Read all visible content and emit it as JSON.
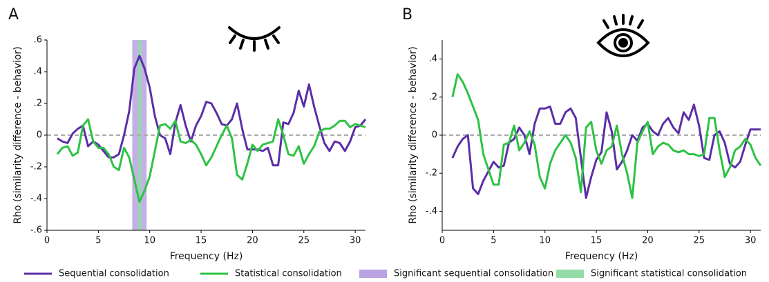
{
  "chart_data": [
    {
      "type": "line",
      "panel": "A",
      "xlabel": "Frequency (Hz)",
      "ylabel": "Rho (similarity difference - behavior)",
      "xlim": [
        0,
        31
      ],
      "ylim": [
        -0.6,
        0.6
      ],
      "xticks": [
        0,
        5,
        10,
        15,
        20,
        25,
        30
      ],
      "yticks": [
        {
          "value": -0.6,
          "label": "-.6"
        },
        {
          "value": -0.4,
          "label": "-.4"
        },
        {
          "value": -0.2,
          "label": "-.2"
        },
        0,
        {
          "value": 0.2,
          "label": ".2"
        },
        {
          "value": 0.4,
          "label": ".4"
        },
        {
          "value": 0.6,
          "label": ".6"
        }
      ],
      "zero_line": true,
      "x": [
        1,
        1.5,
        2,
        2.5,
        3,
        3.5,
        4,
        4.5,
        5,
        5.5,
        6,
        6.5,
        7,
        7.5,
        8,
        8.5,
        9,
        9.5,
        10,
        10.5,
        11,
        11.5,
        12,
        12.5,
        13,
        13.5,
        14,
        14.5,
        15,
        15.5,
        16,
        16.5,
        17,
        17.5,
        18,
        18.5,
        19,
        19.5,
        20,
        20.5,
        21,
        21.5,
        22,
        22.5,
        23,
        23.5,
        24,
        24.5,
        25,
        25.5,
        26,
        26.5,
        27,
        27.5,
        28,
        28.5,
        29,
        29.5,
        30,
        30.5,
        31
      ],
      "bands": [
        {
          "name": "Significant sequential consolidation",
          "color": "#b9a3e0",
          "x": [
            8.3,
            9.7
          ]
        },
        {
          "name": "Significant statistical consolidation",
          "color": "#93dca8",
          "x": [
            8.85,
            9.2
          ]
        }
      ],
      "series": [
        {
          "name": "Sequential consolidation",
          "color": "#5b2ea6",
          "values": [
            -0.02,
            -0.04,
            -0.05,
            0.01,
            0.04,
            0.06,
            -0.07,
            -0.04,
            -0.06,
            -0.1,
            -0.14,
            -0.14,
            -0.12,
            0.0,
            0.15,
            0.42,
            0.5,
            0.42,
            0.3,
            0.12,
            0.0,
            -0.02,
            -0.12,
            0.08,
            0.19,
            0.06,
            -0.04,
            0.06,
            0.12,
            0.21,
            0.2,
            0.14,
            0.07,
            0.06,
            0.1,
            0.2,
            0.04,
            -0.09,
            -0.09,
            -0.09,
            -0.1,
            -0.08,
            -0.19,
            -0.19,
            0.08,
            0.07,
            0.14,
            0.28,
            0.18,
            0.32,
            0.18,
            0.06,
            -0.05,
            -0.1,
            -0.04,
            -0.05,
            -0.1,
            -0.04,
            0.05,
            0.06,
            0.1
          ]
        },
        {
          "name": "Statistical consolidation",
          "color": "#2ec244",
          "values": [
            -0.12,
            -0.08,
            -0.07,
            -0.13,
            -0.11,
            0.06,
            0.1,
            -0.04,
            -0.08,
            -0.08,
            -0.12,
            -0.2,
            -0.22,
            -0.08,
            -0.14,
            -0.28,
            -0.42,
            -0.35,
            -0.26,
            -0.1,
            0.06,
            0.07,
            0.04,
            0.09,
            -0.04,
            -0.05,
            -0.03,
            -0.06,
            -0.12,
            -0.19,
            -0.14,
            -0.07,
            0.0,
            0.06,
            -0.02,
            -0.25,
            -0.28,
            -0.18,
            -0.06,
            -0.1,
            -0.06,
            -0.05,
            -0.04,
            0.1,
            0.0,
            -0.12,
            -0.13,
            -0.07,
            -0.18,
            -0.12,
            -0.07,
            0.02,
            0.04,
            0.04,
            0.06,
            0.09,
            0.09,
            0.05,
            0.07,
            0.06,
            0.05
          ]
        }
      ]
    },
    {
      "type": "line",
      "panel": "B",
      "xlabel": "Frequency (Hz)",
      "ylabel": "Rho (similarity difference - behavior)",
      "xlim": [
        0,
        31
      ],
      "ylim": [
        -0.5,
        0.5
      ],
      "xticks": [
        0,
        5,
        10,
        15,
        20,
        25,
        30
      ],
      "yticks": [
        {
          "value": -0.4,
          "label": "-.4"
        },
        {
          "value": -0.2,
          "label": "-.2"
        },
        0,
        {
          "value": 0.2,
          "label": ".2"
        },
        {
          "value": 0.4,
          "label": ".4"
        }
      ],
      "zero_line": true,
      "x": [
        1,
        1.5,
        2,
        2.5,
        3,
        3.5,
        4,
        4.5,
        5,
        5.5,
        6,
        6.5,
        7,
        7.5,
        8,
        8.5,
        9,
        9.5,
        10,
        10.5,
        11,
        11.5,
        12,
        12.5,
        13,
        13.5,
        14,
        14.5,
        15,
        15.5,
        16,
        16.5,
        17,
        17.5,
        18,
        18.5,
        19,
        19.5,
        20,
        20.5,
        21,
        21.5,
        22,
        22.5,
        23,
        23.5,
        24,
        24.5,
        25,
        25.5,
        26,
        26.5,
        27,
        27.5,
        28,
        28.5,
        29,
        29.5,
        30,
        30.5,
        31
      ],
      "series": [
        {
          "color": "#5b2ea6",
          "values": [
            -0.12,
            -0.06,
            -0.02,
            0.0,
            -0.28,
            -0.31,
            -0.24,
            -0.19,
            -0.14,
            -0.17,
            -0.16,
            -0.04,
            -0.02,
            0.04,
            0.0,
            -0.1,
            0.06,
            0.14,
            0.14,
            0.15,
            0.06,
            0.06,
            0.12,
            0.14,
            0.09,
            -0.12,
            -0.33,
            -0.22,
            -0.13,
            -0.09,
            0.12,
            0.02,
            -0.18,
            -0.14,
            -0.08,
            0.0,
            -0.03,
            0.04,
            0.06,
            0.02,
            0.0,
            0.06,
            0.09,
            0.04,
            0.01,
            0.12,
            0.08,
            0.16,
            0.05,
            -0.12,
            -0.13,
            0.0,
            0.02,
            -0.04,
            -0.15,
            -0.17,
            -0.14,
            -0.05,
            0.03,
            0.03,
            0.03
          ]
        },
        {
          "color": "#2ec244",
          "values": [
            0.2,
            0.32,
            0.28,
            0.22,
            0.15,
            0.08,
            -0.1,
            -0.18,
            -0.26,
            -0.26,
            -0.05,
            -0.04,
            0.05,
            -0.08,
            -0.04,
            0.02,
            -0.05,
            -0.22,
            -0.28,
            -0.15,
            -0.08,
            -0.04,
            0.0,
            -0.04,
            -0.12,
            -0.3,
            0.04,
            0.07,
            -0.08,
            -0.15,
            -0.08,
            -0.06,
            0.05,
            -0.1,
            -0.2,
            -0.33,
            -0.04,
            0.02,
            0.07,
            -0.1,
            -0.06,
            -0.04,
            -0.05,
            -0.08,
            -0.09,
            -0.08,
            -0.1,
            -0.1,
            -0.11,
            -0.1,
            0.09,
            0.09,
            -0.08,
            -0.22,
            -0.17,
            -0.08,
            -0.06,
            -0.02,
            -0.05,
            -0.12,
            -0.16
          ]
        }
      ]
    }
  ]
}
